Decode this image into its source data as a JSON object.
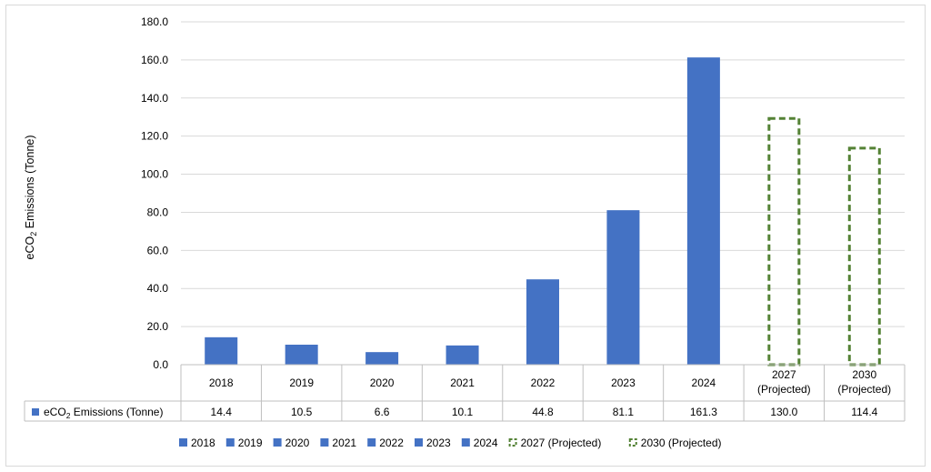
{
  "chart_data": {
    "type": "bar",
    "ylabel_main": "eCO",
    "ylabel_sub": "2",
    "ylabel_rest": " Emissions (Tonne)",
    "ylim": [
      0,
      180
    ],
    "y_ticks": [
      "0.0",
      "20.0",
      "40.0",
      "60.0",
      "80.0",
      "100.0",
      "120.0",
      "140.0",
      "160.0",
      "180.0"
    ],
    "grid": true,
    "categories": [
      {
        "line1": "2018",
        "line2": ""
      },
      {
        "line1": "2019",
        "line2": ""
      },
      {
        "line1": "2020",
        "line2": ""
      },
      {
        "line1": "2021",
        "line2": ""
      },
      {
        "line1": "2022",
        "line2": ""
      },
      {
        "line1": "2023",
        "line2": ""
      },
      {
        "line1": "2024",
        "line2": ""
      },
      {
        "line1": "2027",
        "line2": "(Projected)"
      },
      {
        "line1": "2030",
        "line2": "(Projected)"
      }
    ],
    "values": [
      14.4,
      10.5,
      6.6,
      10.1,
      44.8,
      81.1,
      161.3,
      130.0,
      114.4
    ],
    "value_labels": [
      "14.4",
      "10.5",
      "6.6",
      "10.1",
      "44.8",
      "81.1",
      "161.3",
      "130.0",
      "114.4"
    ],
    "projected": [
      false,
      false,
      false,
      false,
      false,
      false,
      false,
      true,
      true
    ],
    "table_row_label_main": "eCO",
    "table_row_label_sub": "2",
    "table_row_label_rest": " Emissions (Tonne)",
    "legend_placement": "bottom",
    "legend": [
      {
        "label": "2018",
        "projected": false
      },
      {
        "label": "2019",
        "projected": false
      },
      {
        "label": "2020",
        "projected": false
      },
      {
        "label": "2021",
        "projected": false
      },
      {
        "label": "2022",
        "projected": false
      },
      {
        "label": "2023",
        "projected": false
      },
      {
        "label": "2024",
        "projected": false
      },
      {
        "label": "2027 (Projected)",
        "projected": true
      },
      {
        "label": "2030 (Projected)",
        "projected": true
      }
    ],
    "colors": {
      "actual": "#4472c4",
      "projected": "#548235",
      "grid": "#d9d9d9",
      "table_border": "#bfbfbf"
    }
  }
}
